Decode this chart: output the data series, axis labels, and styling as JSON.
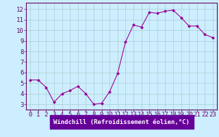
{
  "x": [
    0,
    1,
    2,
    3,
    4,
    5,
    6,
    7,
    8,
    9,
    10,
    11,
    12,
    13,
    14,
    15,
    16,
    17,
    18,
    19,
    20,
    21,
    22,
    23
  ],
  "y": [
    5.3,
    5.3,
    4.6,
    3.2,
    4.0,
    4.3,
    4.7,
    4.0,
    3.0,
    3.1,
    4.2,
    5.9,
    8.9,
    10.5,
    10.3,
    11.7,
    11.6,
    11.8,
    11.9,
    11.2,
    10.4,
    10.4,
    9.6,
    9.3
  ],
  "line_color": "#990099",
  "marker": "D",
  "marker_size": 2,
  "bg_color": "#cceeff",
  "grid_color": "#aacccc",
  "xlabel": "Windchill (Refroidissement éolien,°C)",
  "ylabel_ticks": [
    3,
    4,
    5,
    6,
    7,
    8,
    9,
    10,
    11,
    12
  ],
  "xlim": [
    -0.5,
    23.5
  ],
  "ylim": [
    2.5,
    12.6
  ],
  "tick_fontsize": 6.5,
  "xlabel_fontsize": 6.5,
  "spine_color": "#660066",
  "tick_color": "#660066",
  "label_color": "#660066",
  "xlabel_bg": "#660099"
}
